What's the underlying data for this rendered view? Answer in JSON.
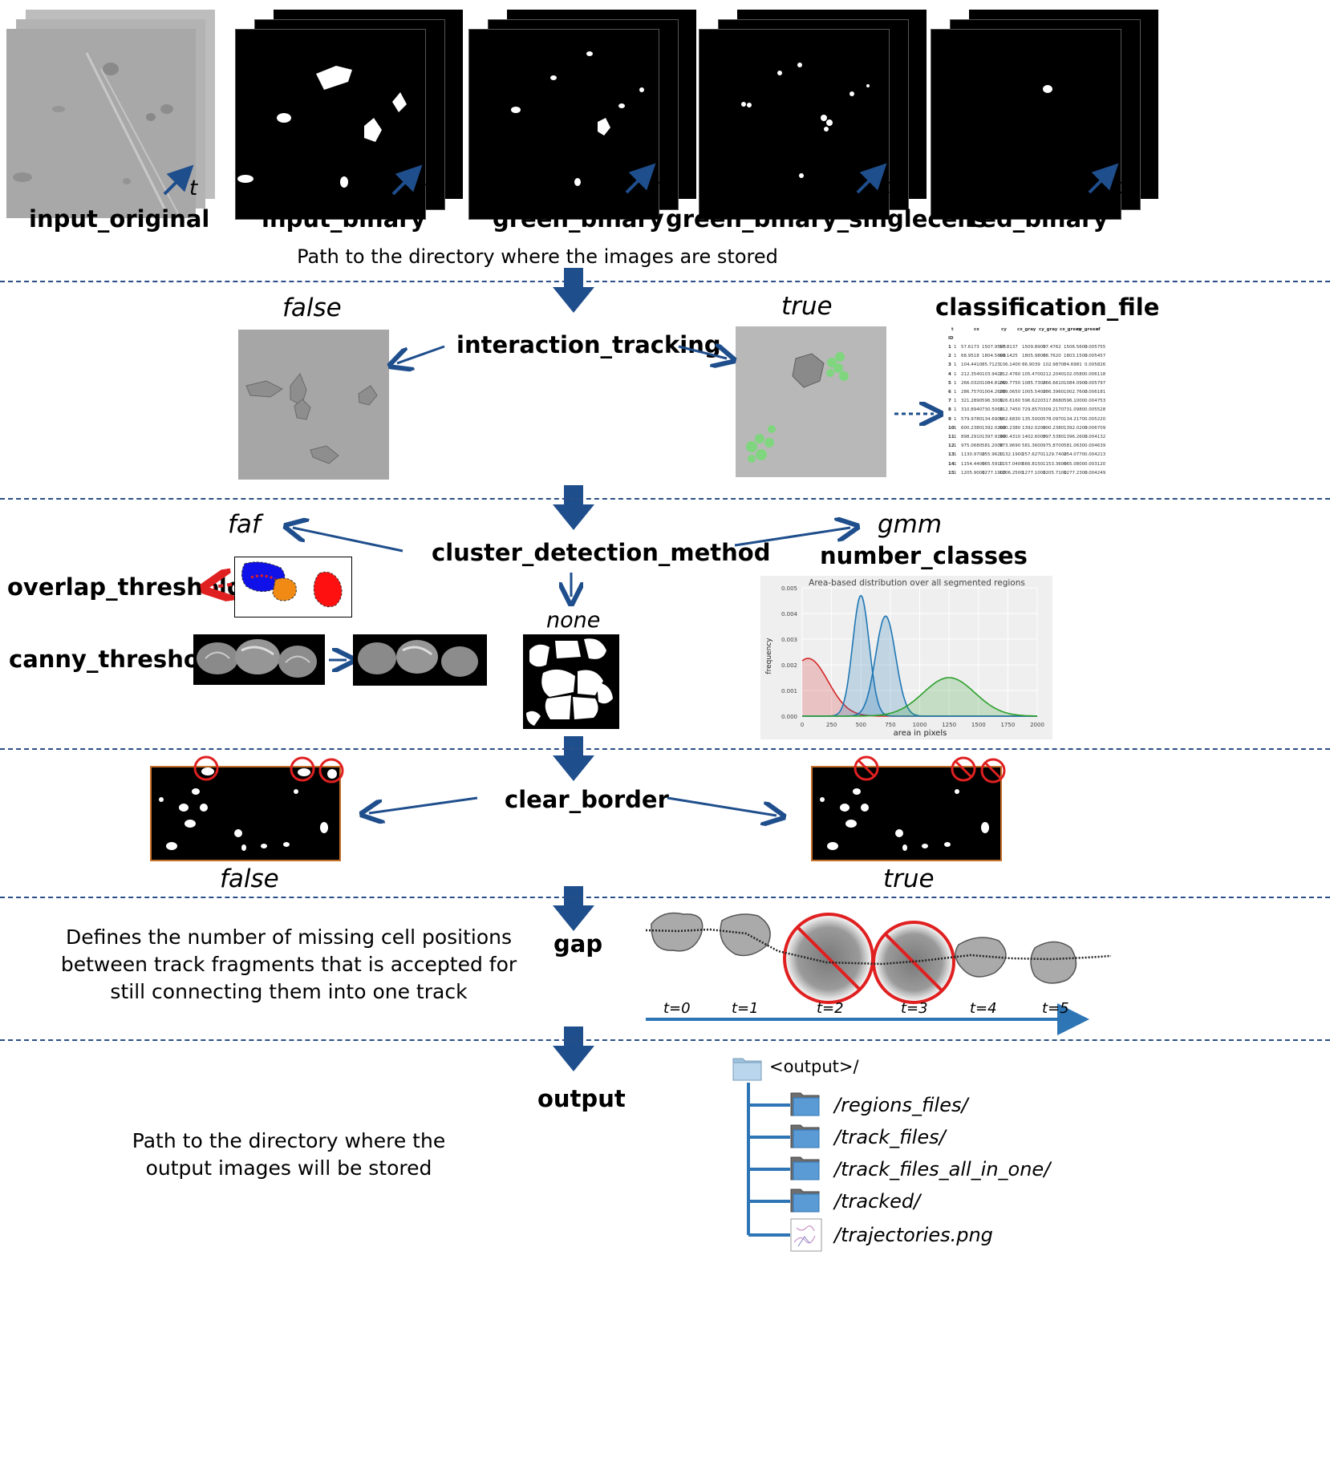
{
  "inputs": {
    "labels": [
      "input_original",
      "input_binary",
      "green_binary",
      "green_binary_singlecells",
      "red_binary"
    ],
    "time_symbol": "t",
    "description": "Path to the directory where the images are stored"
  },
  "interaction": {
    "param": "interaction_tracking",
    "false_label": "false",
    "true_label": "true",
    "classification_file": "classification_file",
    "table": {
      "headers": [
        "t",
        "cx",
        "cy",
        "cx_gray",
        "cy_gray",
        "cx_green",
        "cy_green",
        "sf"
      ],
      "id_header": "ID",
      "rows": [
        [
          "1",
          "1",
          "57.6173",
          "1507.9500",
          "57.8137",
          "1509.8900",
          "57.4762",
          "1506.5600",
          "0.005755"
        ],
        [
          "2",
          "1",
          "68.9518",
          "1804.5600",
          "69.1425",
          "1805.9800",
          "68.7620",
          "1803.1500",
          "0.005457"
        ],
        [
          "3",
          "1",
          "104.4410",
          "85.7123",
          "106.1400",
          "86.9039",
          "102.9870",
          "84.6981",
          "0.005826"
        ],
        [
          "4",
          "1",
          "212.3540",
          "103.9420",
          "212.4760",
          "105.4700",
          "212.2040",
          "102.0580",
          "0.006118"
        ],
        [
          "5",
          "1",
          "266.0320",
          "1084.8100",
          "269.7750",
          "1085.7300",
          "266.6610",
          "1084.0900",
          "0.005797"
        ],
        [
          "6",
          "1",
          "286.7570",
          "1004.2600",
          "289.0650",
          "1005.5400",
          "286.3960",
          "1002.7600",
          "0.006181"
        ],
        [
          "7",
          "1",
          "321.2890",
          "596.3000",
          "326.6160",
          "596.6220",
          "317.8680",
          "596.1000",
          "0.004753"
        ],
        [
          "8",
          "1",
          "310.8940",
          "730.5060",
          "312.7450",
          "729.8570",
          "309.2170",
          "731.0980",
          "0.005528"
        ],
        [
          "9",
          "1",
          "579.9780",
          "134.6900",
          "582.6830",
          "135.5000",
          "578.0970",
          "134.2170",
          "0.005220"
        ],
        [
          "10",
          "1",
          "600.2380",
          "1392.0200",
          "600.2380",
          "1392.0200",
          "600.2380",
          "1392.0200",
          "0.006709"
        ],
        [
          "11",
          "1",
          "898.2910",
          "1397.9100",
          "900.4310",
          "1402.6000",
          "897.5380",
          "1396.2600",
          "0.004132"
        ],
        [
          "12",
          "1",
          "975.0680",
          "581.2000",
          "973.9690",
          "581.3600",
          "975.8700",
          "581.0630",
          "0.004639"
        ],
        [
          "13",
          "1",
          "1130.9700",
          "255.9620",
          "1132.1900",
          "257.6270",
          "1129.7400",
          "254.0770",
          "0.004213"
        ],
        [
          "14",
          "1",
          "1154.4400",
          "665.5910",
          "1157.0400",
          "666.8150",
          "1153.3600",
          "665.0800",
          "0.003120"
        ],
        [
          "15",
          "1",
          "1205.9000",
          "1277.1900",
          "1206.2500",
          "1277.1000",
          "1205.7100",
          "1277.2300",
          "0.004249"
        ]
      ]
    }
  },
  "cluster": {
    "param": "cluster_detection_method",
    "faf": "faf",
    "gmm": "gmm",
    "none": "none",
    "overlap_threshold": "overlap_threshold",
    "canny_threshold": "canny_threshold",
    "number_classes": "number_classes",
    "gmm_chart_title": "Area-based distribution over all segmented regions",
    "gmm_xlabel": "area in pixels",
    "gmm_ylabel": "frequency",
    "gmm_xticks": [
      "0",
      "250",
      "500",
      "750",
      "1000",
      "1250",
      "1500",
      "1750",
      "2000"
    ],
    "gmm_yticks": [
      "0.000",
      "0.001",
      "0.002",
      "0.003",
      "0.004",
      "0.005"
    ]
  },
  "chart_data": {
    "type": "area",
    "title": "Area-based distribution over all segmented regions",
    "xlabel": "area in pixels",
    "ylabel": "frequency",
    "xlim": [
      0,
      2000
    ],
    "ylim": [
      0,
      0.005
    ],
    "series": [
      {
        "color": "#d62728",
        "mean": 50,
        "sd": 170,
        "peak": 0.00225
      },
      {
        "color": "#1f77b4",
        "mean": 500,
        "sd": 70,
        "peak": 0.0047
      },
      {
        "color": "#1f77b4",
        "mean": 710,
        "sd": 85,
        "peak": 0.0039
      },
      {
        "color": "#2ca02c",
        "mean": 1250,
        "sd": 220,
        "peak": 0.0015
      }
    ]
  },
  "border": {
    "param": "clear_border",
    "false_label": "false",
    "true_label": "true"
  },
  "gap": {
    "param": "gap",
    "description": "Defines the number of missing cell positions between track fragments that is accepted for still connecting them into one track",
    "times": [
      "t=0",
      "t=1",
      "t=2",
      "t=3",
      "t=4",
      "t=5"
    ]
  },
  "output": {
    "param": "output",
    "description": "Path to the directory where the output images will be stored",
    "root": "<output>/",
    "children": [
      "/regions_files/",
      "/track_files/",
      "/track_files_all_in_one/",
      "/tracked/",
      "/trajectories.png"
    ]
  },
  "colors": {
    "arrow_blue": "#1f4e8c",
    "timeline_blue": "#2e75b6",
    "separator": "#2a4f86",
    "red": "#e02020",
    "orange_frame": "#c5702a"
  }
}
